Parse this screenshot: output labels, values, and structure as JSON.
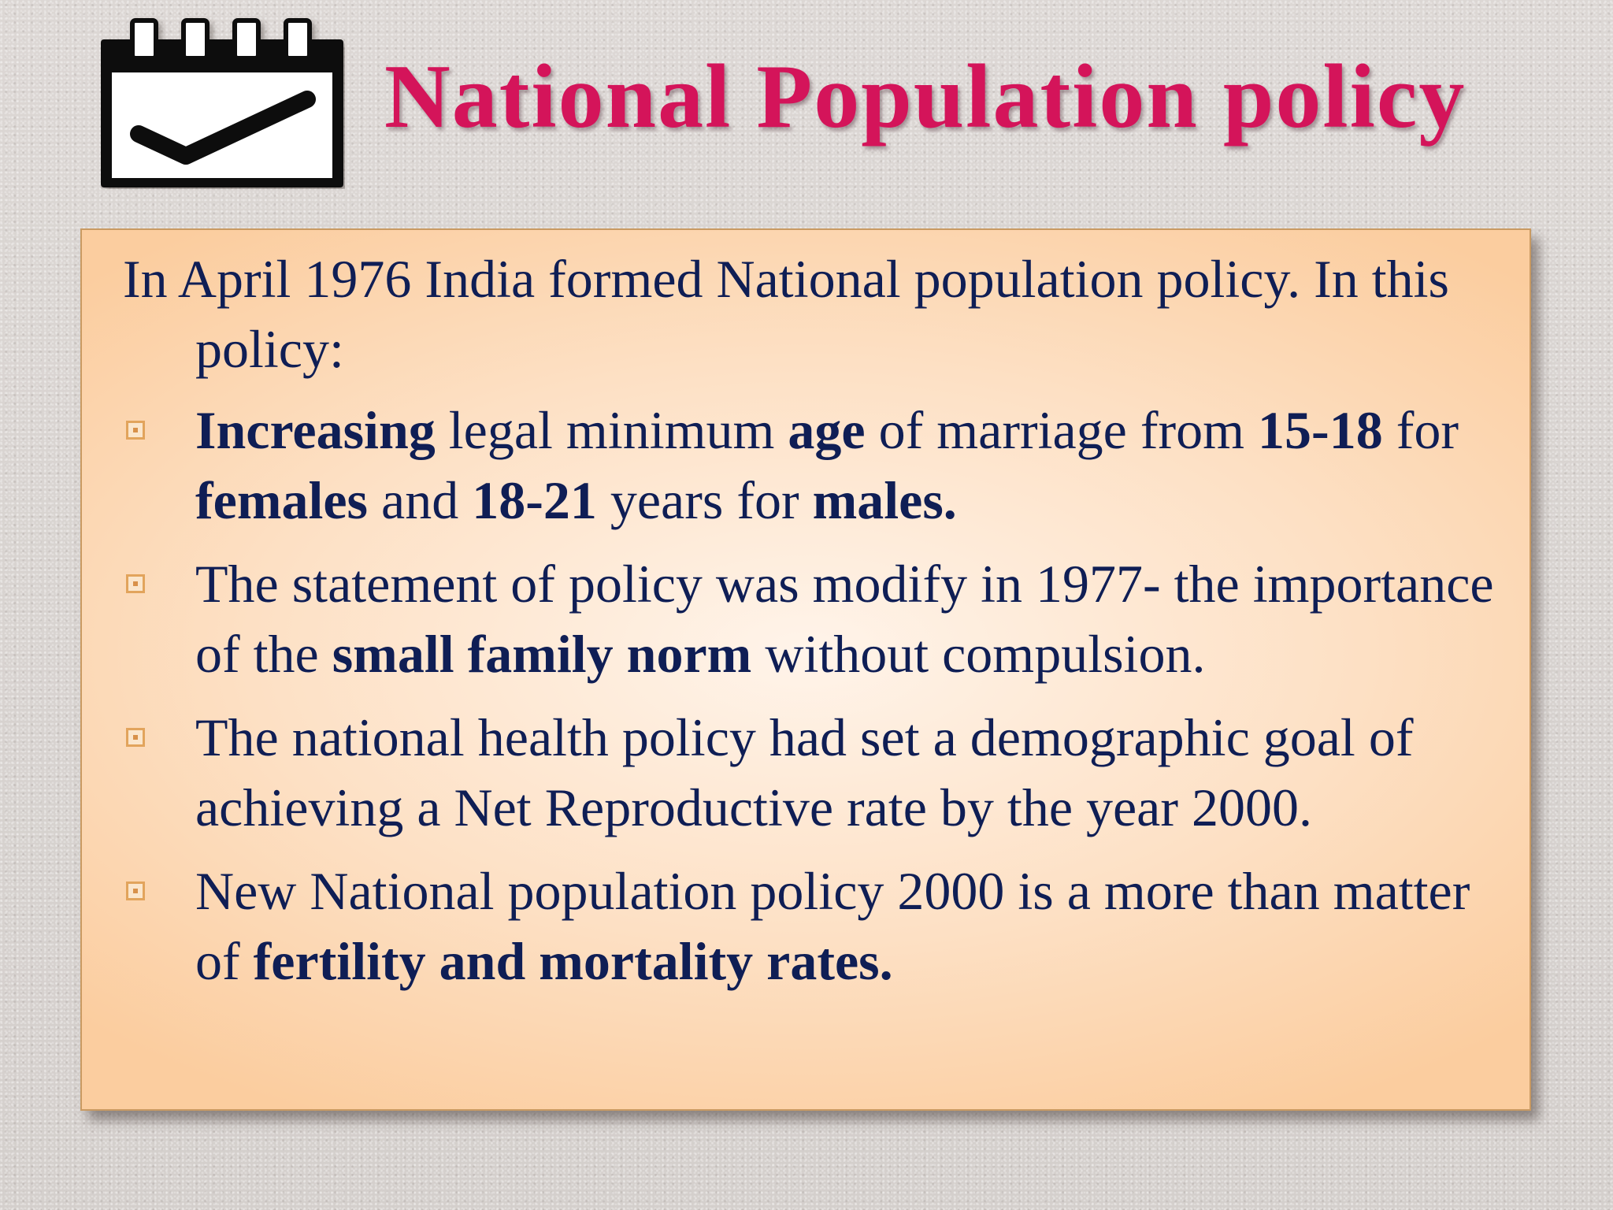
{
  "slide": {
    "title": "National Population policy",
    "icon": "calendar-check-icon",
    "colors": {
      "title": "#d4145a",
      "text": "#0f1e55",
      "box_border": "#c99a62",
      "bullet": "#e2a45c"
    },
    "intro": {
      "part1": "In April 1976 India formed National population policy. In",
      "part2": "this policy:"
    },
    "bullets": [
      {
        "segments": [
          "Increasing",
          " legal minimum ",
          "age",
          " of marriage from ",
          "15-18",
          " for ",
          "females",
          " and ",
          "18-21",
          " years for ",
          "males."
        ]
      },
      {
        "segments": [
          "The statement of policy was modify in 1977- the importance of the ",
          "small family norm",
          " without compulsion."
        ]
      },
      {
        "segments": [
          "The national health policy had set a demographic goal of achieving a Net Reproductive rate by the year 2000."
        ]
      },
      {
        "segments": [
          " New National population policy 2000 is a more than matter of ",
          "fertility and mortality rates."
        ]
      }
    ]
  }
}
